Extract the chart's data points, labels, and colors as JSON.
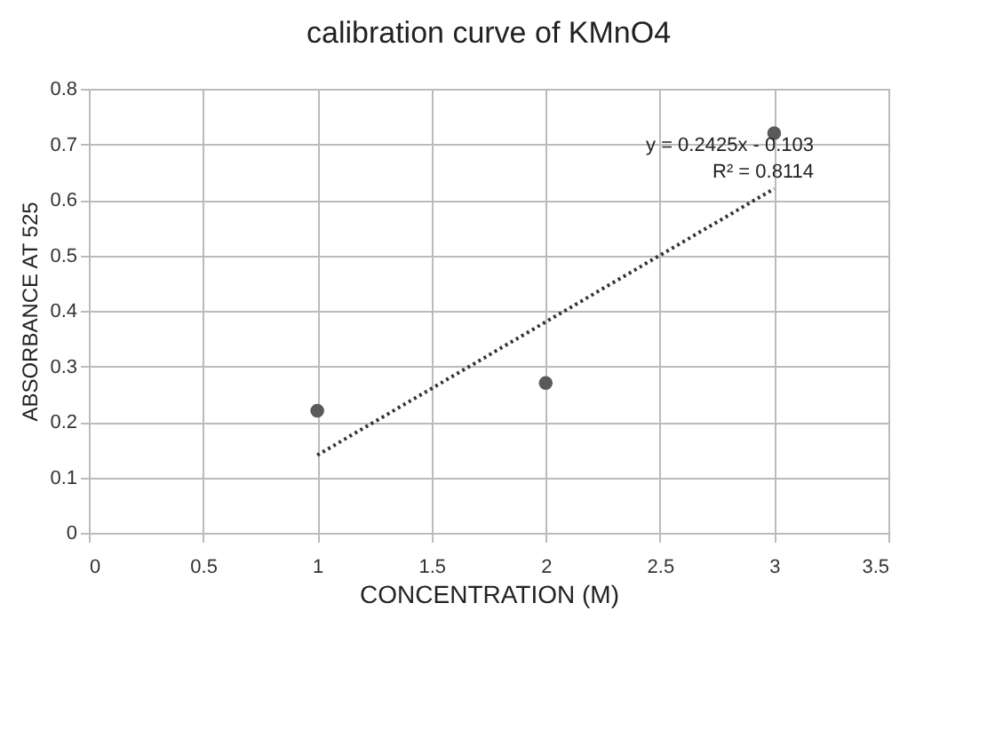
{
  "chart_data": {
    "type": "scatter",
    "title": "calibration curve of KMnO4",
    "xlabel": "CONCENTRATION (M)",
    "ylabel": "ABSORBANCE AT 525",
    "xlim": [
      0,
      3.5
    ],
    "xticks": [
      0,
      0.5,
      1,
      1.5,
      2,
      2.5,
      3,
      3.5
    ],
    "ylim": [
      0,
      0.8
    ],
    "yticks": [
      0,
      0.1,
      0.2,
      0.3,
      0.4,
      0.5,
      0.6,
      0.7,
      0.8
    ],
    "grid": true,
    "series": [
      {
        "x": [
          1,
          2,
          3
        ],
        "values": [
          0.22,
          0.27,
          0.72
        ],
        "color": "#5a5a5a",
        "marker": "circle"
      },
      {
        "type": "line",
        "x": [
          1,
          3
        ],
        "values": [
          0.14,
          0.62
        ],
        "color": "#333333",
        "line_style": "dotted"
      }
    ],
    "annotations": [
      "y = 0.2425x - 0.103",
      "R² = 0.8114"
    ]
  }
}
